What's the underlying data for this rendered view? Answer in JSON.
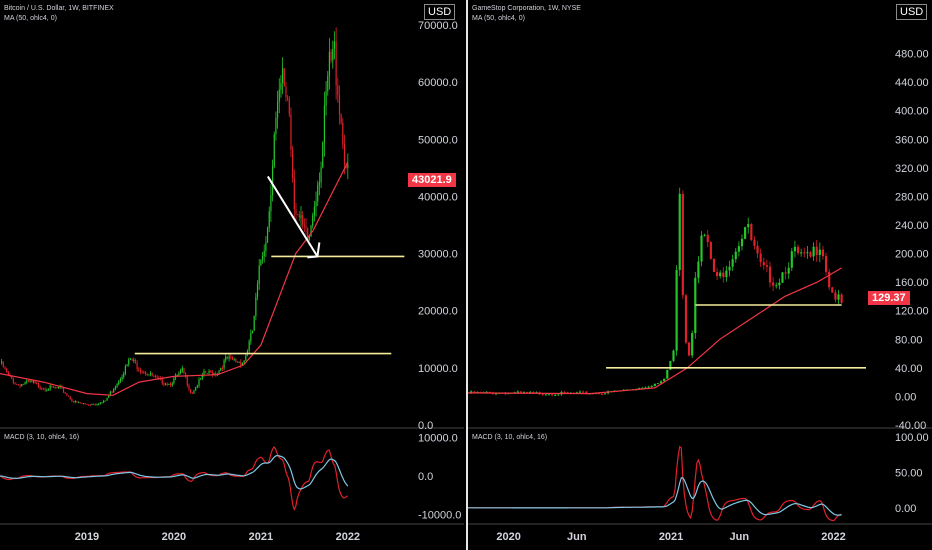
{
  "currency": "USD",
  "chart_data": [
    {
      "type": "candlestick",
      "title": "Bitcoin / U.S. Dollar, 1W, BITFINEX",
      "indicator_label": "MA (50, ohlc4, 0)",
      "ylim": [
        0,
        70000
      ],
      "y_ticks": [
        "70000.0",
        "60000.0",
        "50000.0",
        "40000.0",
        "30000.0",
        "20000.0",
        "10000.0",
        "0.0"
      ],
      "x_ticks": [
        "2019",
        "2020",
        "2021",
        "2022"
      ],
      "last_price": "43021.9",
      "support_lines": [
        12500,
        29500
      ],
      "price": [
        {
          "t": 2018.0,
          "v": 11000
        },
        {
          "t": 2018.1,
          "v": 8500
        },
        {
          "t": 2018.2,
          "v": 7000
        },
        {
          "t": 2018.35,
          "v": 7500
        },
        {
          "t": 2018.5,
          "v": 6500
        },
        {
          "t": 2018.7,
          "v": 6400
        },
        {
          "t": 2018.85,
          "v": 4000
        },
        {
          "t": 2019.0,
          "v": 3600
        },
        {
          "t": 2019.2,
          "v": 4000
        },
        {
          "t": 2019.35,
          "v": 7500
        },
        {
          "t": 2019.5,
          "v": 11500
        },
        {
          "t": 2019.6,
          "v": 10000
        },
        {
          "t": 2019.8,
          "v": 8000
        },
        {
          "t": 2019.95,
          "v": 7200
        },
        {
          "t": 2020.1,
          "v": 9500
        },
        {
          "t": 2020.2,
          "v": 5500
        },
        {
          "t": 2020.35,
          "v": 9000
        },
        {
          "t": 2020.5,
          "v": 9200
        },
        {
          "t": 2020.6,
          "v": 11500
        },
        {
          "t": 2020.8,
          "v": 11000
        },
        {
          "t": 2020.9,
          "v": 16000
        },
        {
          "t": 2021.0,
          "v": 29000
        },
        {
          "t": 2021.08,
          "v": 35000
        },
        {
          "t": 2021.15,
          "v": 50000
        },
        {
          "t": 2021.25,
          "v": 60000
        },
        {
          "t": 2021.32,
          "v": 57000
        },
        {
          "t": 2021.38,
          "v": 40000
        },
        {
          "t": 2021.45,
          "v": 35000
        },
        {
          "t": 2021.55,
          "v": 32000
        },
        {
          "t": 2021.62,
          "v": 40000
        },
        {
          "t": 2021.7,
          "v": 47000
        },
        {
          "t": 2021.78,
          "v": 62000
        },
        {
          "t": 2021.85,
          "v": 65000
        },
        {
          "t": 2021.9,
          "v": 57000
        },
        {
          "t": 2021.95,
          "v": 49000
        },
        {
          "t": 2022.0,
          "v": 43000
        }
      ],
      "ma": [
        {
          "t": 2018.0,
          "v": 9000
        },
        {
          "t": 2018.5,
          "v": 7500
        },
        {
          "t": 2019.0,
          "v": 5500
        },
        {
          "t": 2019.3,
          "v": 5200
        },
        {
          "t": 2019.6,
          "v": 7500
        },
        {
          "t": 2020.0,
          "v": 8500
        },
        {
          "t": 2020.5,
          "v": 8800
        },
        {
          "t": 2020.8,
          "v": 10500
        },
        {
          "t": 2021.0,
          "v": 14000
        },
        {
          "t": 2021.2,
          "v": 22000
        },
        {
          "t": 2021.4,
          "v": 30000
        },
        {
          "t": 2021.6,
          "v": 34000
        },
        {
          "t": 2021.8,
          "v": 40000
        },
        {
          "t": 2022.0,
          "v": 46000
        }
      ],
      "macd": {
        "label": "MACD (3, 10, ohlc4, 16)",
        "ylim": [
          -12000,
          12000
        ],
        "y_ticks": [
          "10000.0",
          "0.0",
          "-10000.0"
        ]
      }
    },
    {
      "type": "candlestick",
      "title": "GameStop Corporation, 1W, NYSE",
      "indicator_label": "MA (50, ohlc4, 0)",
      "ylim": [
        -40,
        520
      ],
      "y_ticks": [
        "480.00",
        "440.00",
        "400.00",
        "360.00",
        "320.00",
        "280.00",
        "240.00",
        "200.00",
        "160.00",
        "120.00",
        "80.00",
        "40.00",
        "0.00",
        "-40.00"
      ],
      "x_ticks": [
        "2020",
        "Jun",
        "2021",
        "Jun",
        "2022"
      ],
      "last_price": "129.37",
      "support_lines": [
        40,
        128
      ],
      "price": [
        {
          "t": 2019.75,
          "v": 5
        },
        {
          "t": 2020.0,
          "v": 5
        },
        {
          "t": 2020.3,
          "v": 4
        },
        {
          "t": 2020.6,
          "v": 5
        },
        {
          "t": 2020.8,
          "v": 12
        },
        {
          "t": 2020.95,
          "v": 20
        },
        {
          "t": 2021.02,
          "v": 65
        },
        {
          "t": 2021.05,
          "v": 320
        },
        {
          "t": 2021.08,
          "v": 90
        },
        {
          "t": 2021.12,
          "v": 50
        },
        {
          "t": 2021.15,
          "v": 180
        },
        {
          "t": 2021.2,
          "v": 230
        },
        {
          "t": 2021.28,
          "v": 160
        },
        {
          "t": 2021.38,
          "v": 200
        },
        {
          "t": 2021.46,
          "v": 240
        },
        {
          "t": 2021.55,
          "v": 180
        },
        {
          "t": 2021.65,
          "v": 160
        },
        {
          "t": 2021.75,
          "v": 200
        },
        {
          "t": 2021.85,
          "v": 190
        },
        {
          "t": 2021.92,
          "v": 220
        },
        {
          "t": 2021.98,
          "v": 150
        },
        {
          "t": 2022.05,
          "v": 129
        }
      ],
      "ma": [
        {
          "t": 2019.75,
          "v": 5
        },
        {
          "t": 2020.5,
          "v": 4
        },
        {
          "t": 2020.9,
          "v": 12
        },
        {
          "t": 2021.1,
          "v": 40
        },
        {
          "t": 2021.3,
          "v": 80
        },
        {
          "t": 2021.5,
          "v": 110
        },
        {
          "t": 2021.7,
          "v": 140
        },
        {
          "t": 2021.9,
          "v": 160
        },
        {
          "t": 2022.05,
          "v": 180
        }
      ],
      "macd": {
        "label": "MACD (3, 10, ohlc4, 16)",
        "ylim": [
          -20,
          110
        ],
        "y_ticks": [
          "100.00",
          "50.00",
          "0.00"
        ]
      }
    }
  ]
}
